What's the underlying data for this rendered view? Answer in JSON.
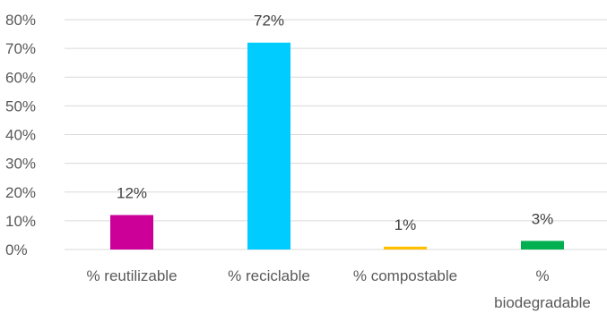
{
  "chart_data": {
    "type": "bar",
    "categories": [
      [
        "% reutilizable"
      ],
      [
        "% reciclable"
      ],
      [
        "% compostable"
      ],
      [
        "%",
        "biodegradable"
      ]
    ],
    "values": [
      12,
      72,
      1,
      3
    ],
    "data_labels": [
      "12%",
      "72%",
      "1%",
      "3%"
    ],
    "colors": [
      "#cc0099",
      "#00ccff",
      "#ffc000",
      "#00b050"
    ],
    "ylim": [
      0,
      80
    ],
    "y_ticks": [
      "0%",
      "10%",
      "20%",
      "30%",
      "40%",
      "50%",
      "60%",
      "70%",
      "80%"
    ],
    "grid": true,
    "gridline_color": "#d9d9d9",
    "title": "",
    "xlabel": "",
    "ylabel": ""
  }
}
